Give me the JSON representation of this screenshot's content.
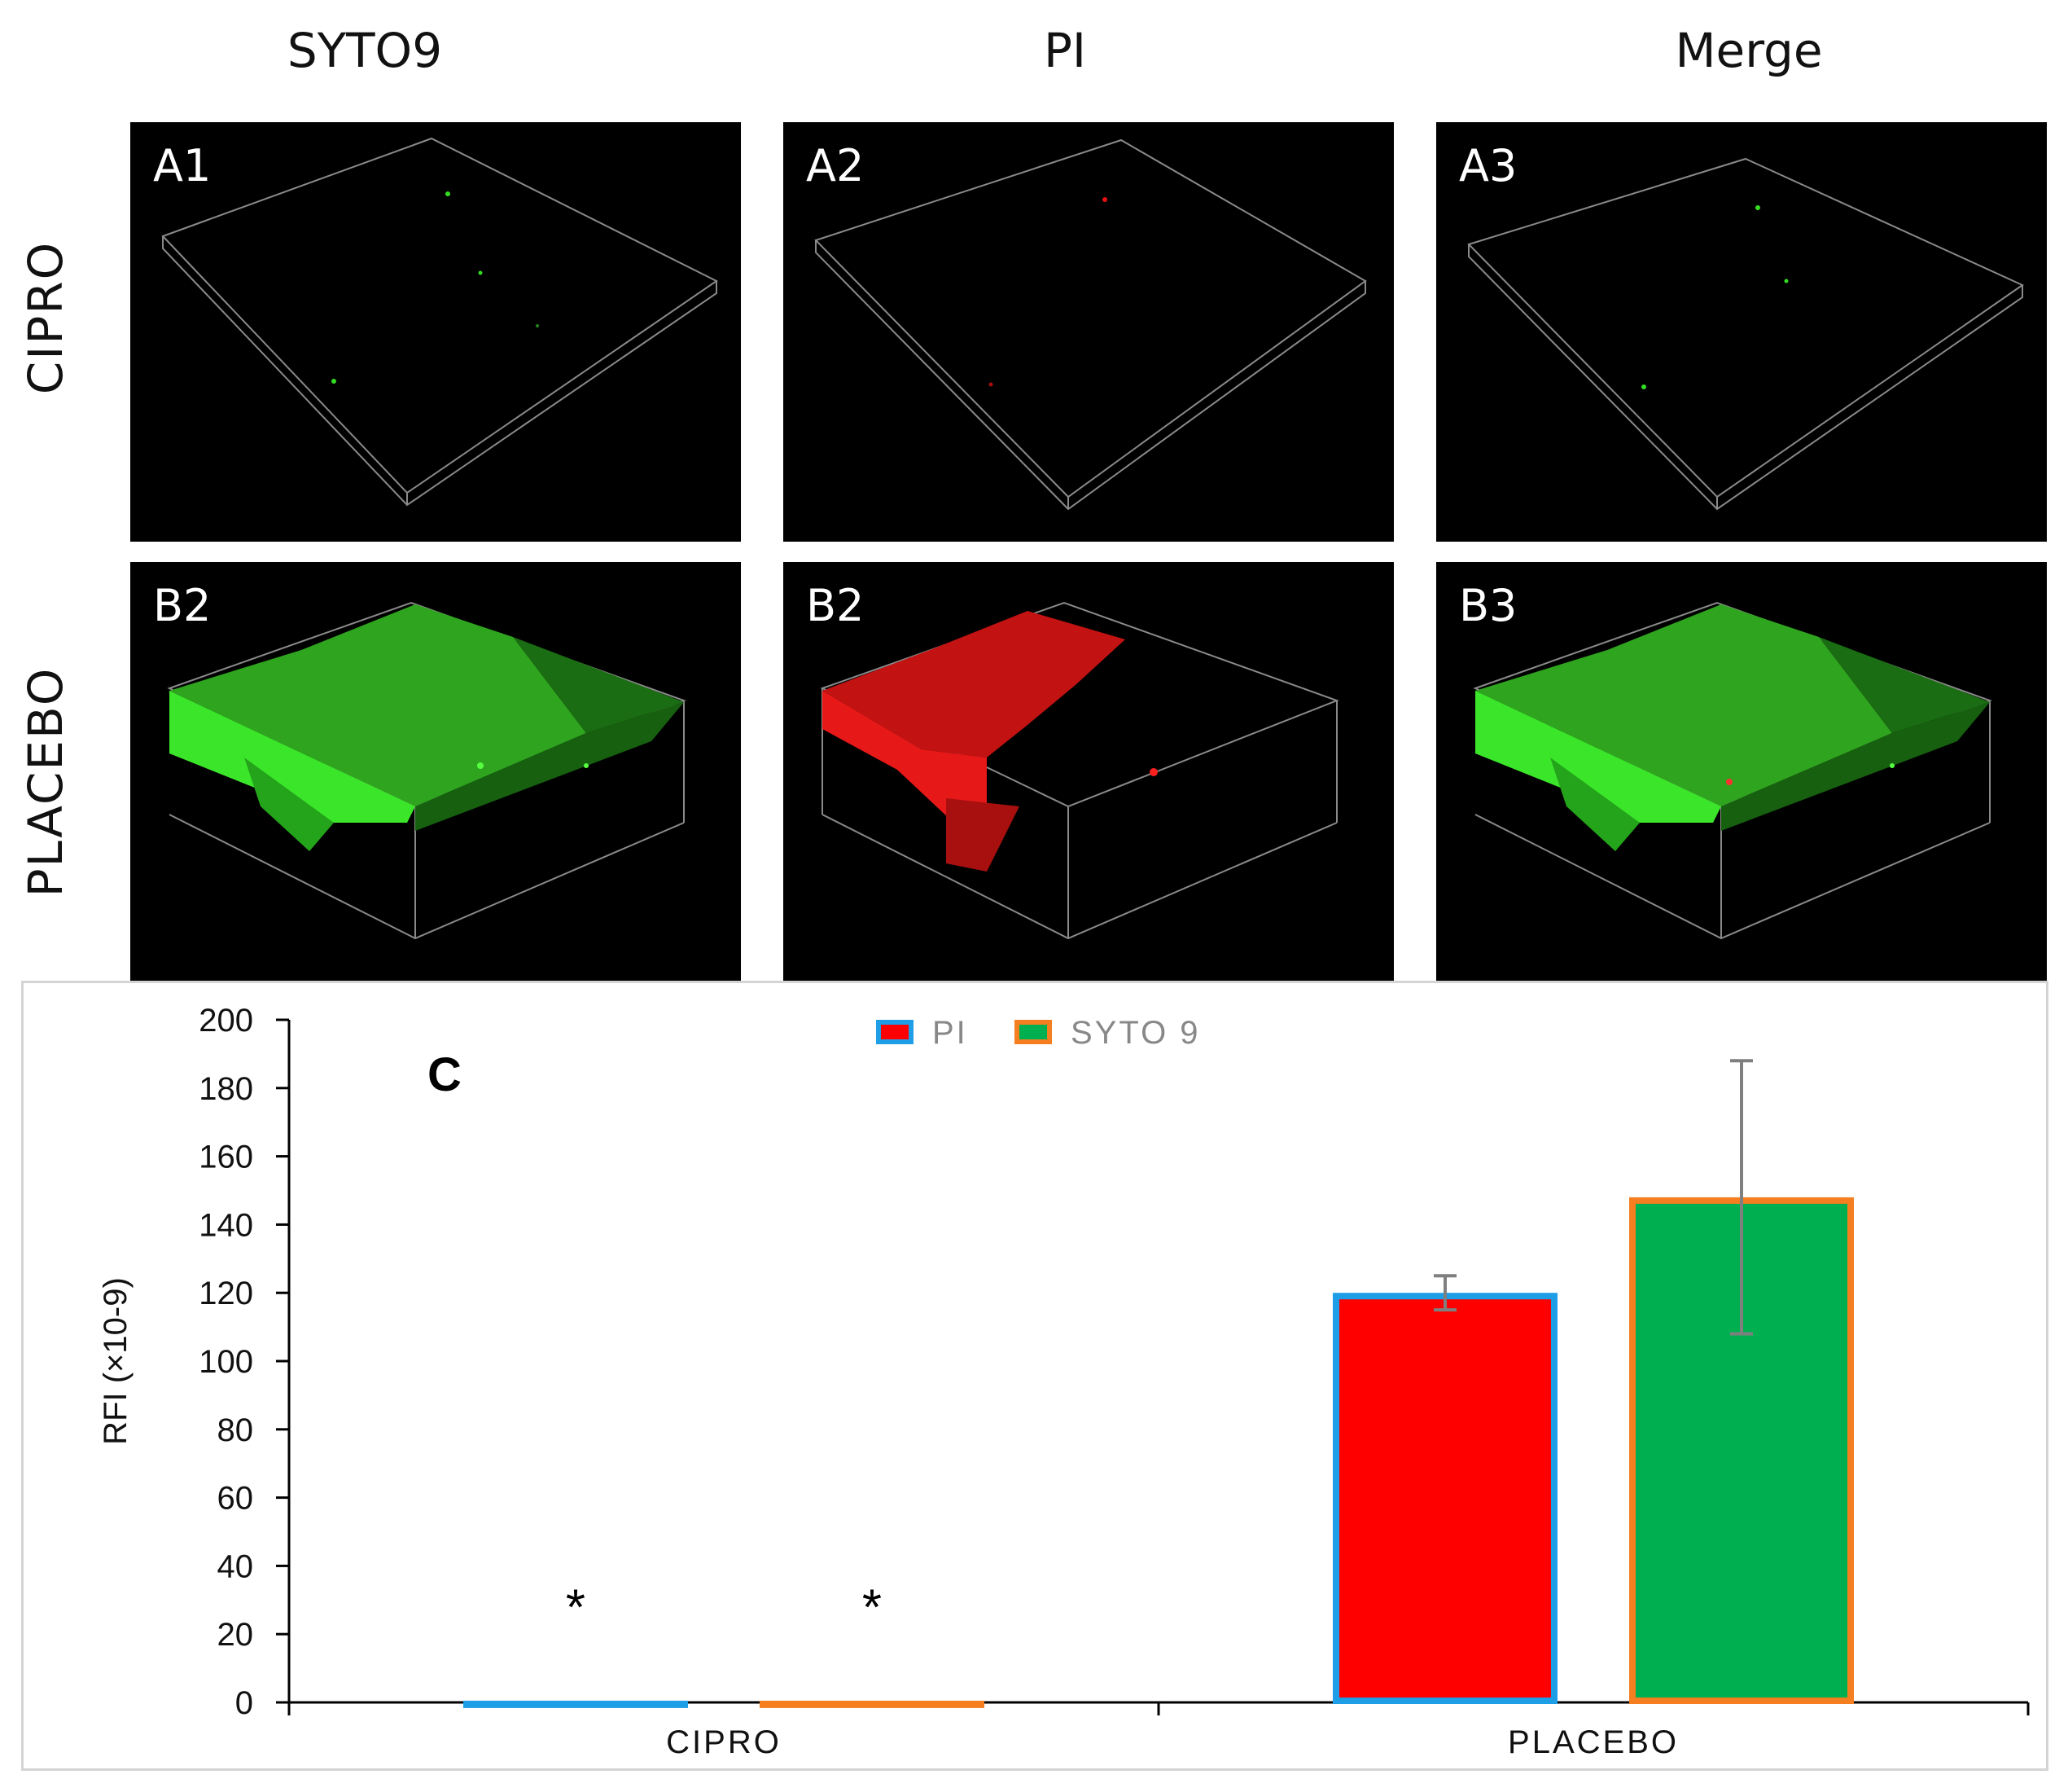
{
  "figure": {
    "columns": [
      "SYTO9",
      "PI",
      "Merge"
    ],
    "rows": [
      "CIPRO",
      "PLACEBO"
    ],
    "panels": [
      {
        "label": "A1",
        "row": "CIPRO",
        "channel": "syto9"
      },
      {
        "label": "A2",
        "row": "CIPRO",
        "channel": "pi"
      },
      {
        "label": "A3",
        "row": "CIPRO",
        "channel": "merge"
      },
      {
        "label": "B2",
        "row": "PLACEBO",
        "channel": "syto9"
      },
      {
        "label": "B2",
        "row": "PLACEBO",
        "channel": "pi"
      },
      {
        "label": "B3",
        "row": "PLACEBO",
        "channel": "merge"
      }
    ],
    "colors": {
      "syto9": "#33dd22",
      "pi": "#e81010"
    }
  },
  "chart_data": {
    "type": "bar",
    "panel_label": "C",
    "categories": [
      "CIPRO",
      "PLACEBO"
    ],
    "series": [
      {
        "name": "PI",
        "values": [
          0.5,
          120
        ],
        "errors": [
          0,
          5
        ],
        "fill": "#ff0000",
        "border": "#1e9ee6"
      },
      {
        "name": "SYTO 9",
        "values": [
          0.5,
          148
        ],
        "errors": [
          0,
          40
        ],
        "fill": "#00b050",
        "border": "#f47e20"
      }
    ],
    "annotations": [
      {
        "text": "*",
        "category": "CIPRO",
        "series": "PI",
        "value": 30
      },
      {
        "text": "*",
        "category": "CIPRO",
        "series": "SYTO 9",
        "value": 30
      }
    ],
    "ylabel": "RFI (×10-9)",
    "xlabel": "",
    "ylim": [
      0,
      200
    ],
    "yticks": [
      0,
      20,
      40,
      60,
      80,
      100,
      120,
      140,
      160,
      180,
      200
    ],
    "legend": {
      "position": "top-center",
      "entries": [
        "PI",
        "SYTO 9"
      ]
    },
    "grid": false
  }
}
